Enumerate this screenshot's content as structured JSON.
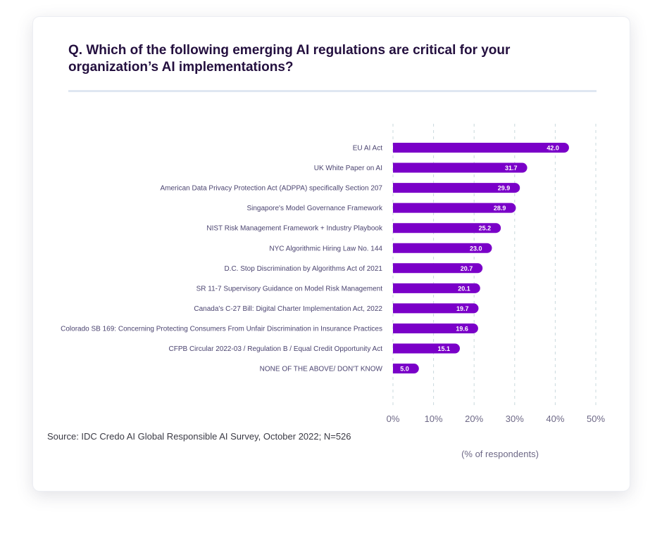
{
  "title": "Q. Which of the following emerging AI regulations are critical for your organization’s AI implementations?",
  "source": "Source: IDC Credo AI Global Responsible AI Survey, October 2022; N=526",
  "colors": {
    "bar": "#7a00c8",
    "grid": "#c9d8dc",
    "label": "#4b4470",
    "tick": "#6d6886"
  },
  "chart_data": {
    "type": "bar",
    "orientation": "horizontal",
    "title": "Q. Which of the following emerging AI regulations are critical for your organization’s AI implementations?",
    "xlabel": "(% of respondents)",
    "xlim": [
      0,
      50
    ],
    "xticks": [
      "0%",
      "10%",
      "20%",
      "30%",
      "40%",
      "50%"
    ],
    "grid": true,
    "categories": [
      "EU AI Act",
      "UK White Paper on AI",
      "American Data Privacy Protection Act (ADPPA) specifically Section 207",
      "Singapore's Model Governance Framework",
      "NIST Risk Management Framework + Industry Playbook",
      "NYC Algorithmic Hiring Law No. 144",
      "D.C. Stop Discrimination by Algorithms Act of 2021",
      "SR 11-7 Supervisory Guidance on Model Risk Management",
      "Canada's C-27 Bill: Digital Charter Implementation Act, 2022",
      "Colorado SB 169: Concerning Protecting Consumers From Unfair Discrimination in Insurance Practices",
      "CFPB Circular 2022-03 / Regulation B / Equal Credit Opportunity Act",
      "NONE OF THE ABOVE/ DON'T KNOW"
    ],
    "values": [
      42.0,
      31.7,
      29.9,
      28.9,
      25.2,
      23.0,
      20.7,
      20.1,
      19.7,
      19.6,
      15.1,
      5.0
    ]
  }
}
